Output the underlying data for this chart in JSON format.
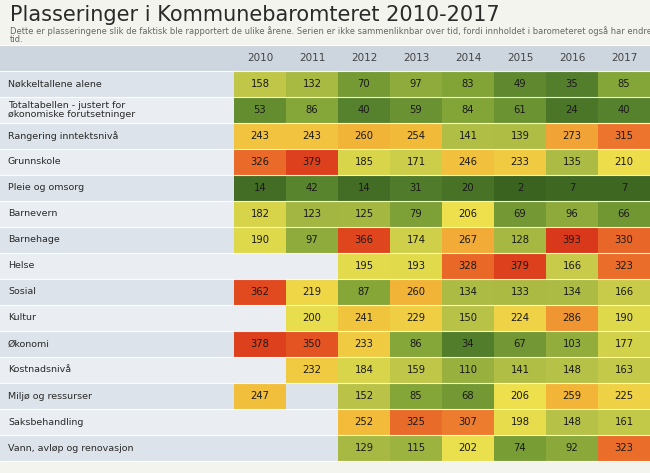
{
  "title": "Plasseringer i Kommunebaromteret 2010-2017",
  "subtitle_line1": "Dette er plasseringene slik de faktisk ble rapportert de ulike årene. Serien er ikke sammenliknbar over tid, fordi innholdet i barometeret også har endret seg over",
  "subtitle_line2": "tid.",
  "years": [
    "2010",
    "2011",
    "2012",
    "2013",
    "2014",
    "2015",
    "2016",
    "2017"
  ],
  "rows": [
    {
      "label": "Nøkkeltallene alene",
      "values": [
        158,
        132,
        70,
        97,
        83,
        49,
        35,
        85
      ]
    },
    {
      "label": "Totaltabellen - justert for\nøkonomiske forutsetninger",
      "values": [
        53,
        86,
        40,
        59,
        84,
        61,
        24,
        40
      ]
    },
    {
      "label": "Rangering inntektsnivå",
      "values": [
        243,
        243,
        260,
        254,
        141,
        139,
        273,
        315
      ]
    },
    {
      "label": "Grunnskole",
      "values": [
        326,
        379,
        185,
        171,
        246,
        233,
        135,
        210
      ]
    },
    {
      "label": "Pleie og omsorg",
      "values": [
        14,
        42,
        14,
        31,
        20,
        2,
        7,
        7
      ]
    },
    {
      "label": "Barnevern",
      "values": [
        182,
        123,
        125,
        79,
        206,
        69,
        96,
        66
      ]
    },
    {
      "label": "Barnehage",
      "values": [
        190,
        97,
        366,
        174,
        267,
        128,
        393,
        330
      ]
    },
    {
      "label": "Helse",
      "values": [
        null,
        null,
        195,
        193,
        328,
        379,
        166,
        323
      ]
    },
    {
      "label": "Sosial",
      "values": [
        362,
        219,
        87,
        260,
        134,
        133,
        134,
        166
      ]
    },
    {
      "label": "Kultur",
      "values": [
        null,
        200,
        241,
        229,
        150,
        224,
        286,
        190
      ]
    },
    {
      "label": "Økonomi",
      "values": [
        378,
        350,
        233,
        86,
        34,
        67,
        103,
        177
      ]
    },
    {
      "label": "Kostnadsnivå",
      "values": [
        null,
        232,
        184,
        159,
        110,
        141,
        148,
        163
      ]
    },
    {
      "label": "Miljø og ressurser",
      "values": [
        247,
        null,
        152,
        85,
        68,
        206,
        259,
        225
      ]
    },
    {
      "label": "Saksbehandling",
      "values": [
        null,
        null,
        252,
        325,
        307,
        198,
        148,
        161
      ]
    },
    {
      "label": "Vann, avløp og renovasjon",
      "values": [
        null,
        null,
        129,
        115,
        202,
        74,
        92,
        323
      ]
    }
  ],
  "max_value": 428,
  "bg_color": "#f4f4ee",
  "header_bg": "#cdd5de",
  "row_even_bg": "#dde3ea",
  "row_odd_bg": "#eaeef2",
  "empty_cell_bg_even": "#dde3ea",
  "empty_cell_bg_odd": "#eaeef2"
}
